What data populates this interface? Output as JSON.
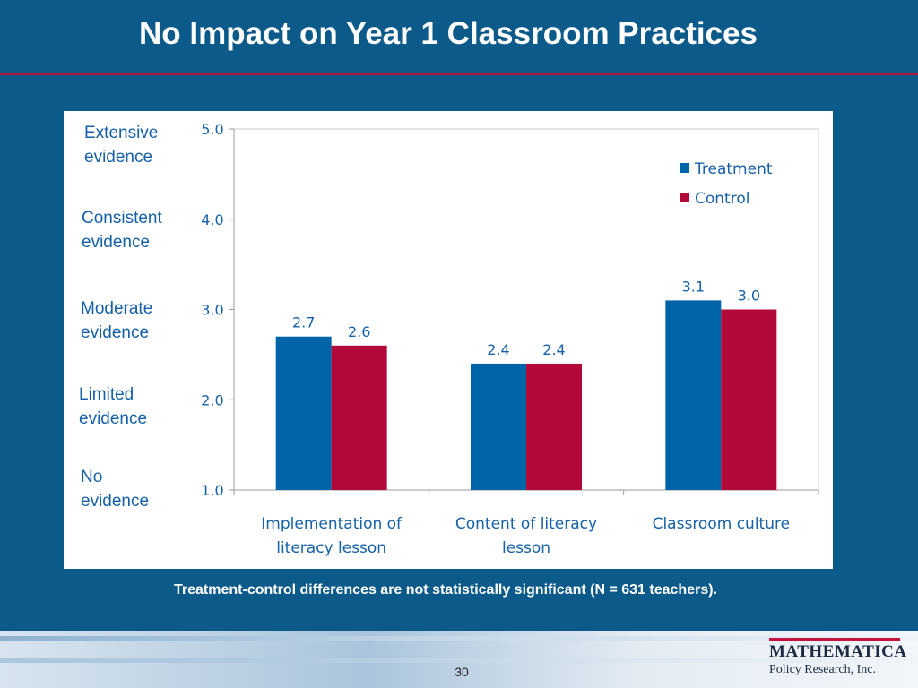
{
  "slide": {
    "title": "No Impact on Year 1 Classroom Practices",
    "footnote": "Treatment-control differences are not statistically significant (N = 631 teachers).",
    "page_number": "30",
    "logo": {
      "name": "MATHEMATICA",
      "subtitle": "Policy Research, Inc."
    }
  },
  "evidence_labels": [
    "Extensive\nevidence",
    "Consistent\nevidence",
    "Moderate\nevidence",
    "Limited\nevidence",
    "No\nevidence"
  ],
  "colors": {
    "treatment": "#0064a8",
    "control": "#b3093a",
    "axis_text": "#1560a8"
  },
  "chart_data": {
    "type": "bar",
    "categories": [
      "Implementation of literacy lesson",
      "Content of literacy lesson",
      "Classroom culture"
    ],
    "category_lines": [
      [
        "Implementation of",
        "literacy lesson"
      ],
      [
        "Content of literacy",
        "lesson"
      ],
      [
        "Classroom culture"
      ]
    ],
    "series": [
      {
        "name": "Treatment",
        "values": [
          2.7,
          2.4,
          3.1
        ],
        "labels": [
          "2.7",
          "2.4",
          "3.1"
        ]
      },
      {
        "name": "Control",
        "values": [
          2.6,
          2.4,
          3.0
        ],
        "labels": [
          "2.6",
          "2.4",
          "3.0"
        ]
      }
    ],
    "ylim": [
      1.0,
      5.0
    ],
    "yticks": [
      "1.0",
      "2.0",
      "3.0",
      "4.0",
      "5.0"
    ],
    "legend": "top-right",
    "grid": false
  }
}
